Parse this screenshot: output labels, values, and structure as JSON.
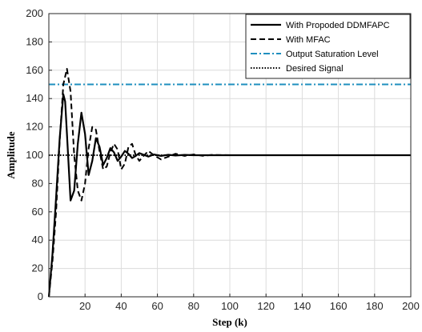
{
  "chart_data": {
    "type": "line",
    "title": "",
    "xlabel": "Step (k)",
    "ylabel": "Amplitude",
    "xlim": [
      0,
      200
    ],
    "ylim": [
      0,
      200
    ],
    "xticks": [
      20,
      40,
      60,
      80,
      100,
      120,
      140,
      160,
      180,
      200
    ],
    "yticks": [
      0,
      20,
      40,
      60,
      80,
      100,
      120,
      140,
      160,
      180,
      200
    ],
    "grid": true,
    "legend_position": "top-right",
    "series": [
      {
        "name": "With Propoded DDMFAPC",
        "color": "#000000",
        "style": "solid",
        "x": [
          0,
          2,
          4,
          6,
          8,
          9,
          10,
          12,
          14,
          16,
          18,
          20,
          22,
          24,
          26,
          28,
          30,
          32,
          34,
          36,
          38,
          40,
          42,
          44,
          46,
          48,
          50,
          52,
          55,
          58,
          62,
          66,
          70,
          75,
          80,
          90,
          100,
          120,
          150,
          200
        ],
        "y": [
          0,
          30,
          70,
          112,
          143,
          138,
          115,
          68,
          75,
          108,
          130,
          115,
          86,
          96,
          112,
          106,
          93,
          98,
          105,
          102,
          96,
          99,
          103,
          101,
          98,
          99.5,
          101.5,
          100.5,
          99,
          100.5,
          99.5,
          100.3,
          99.8,
          100.2,
          100,
          100,
          100,
          100,
          100,
          100
        ]
      },
      {
        "name": "With MFAC",
        "color": "#000000",
        "style": "dashed",
        "x": [
          0,
          2,
          4,
          6,
          8,
          10,
          12,
          14,
          16,
          18,
          20,
          22,
          24,
          26,
          28,
          30,
          32,
          34,
          36,
          38,
          40,
          42,
          44,
          46,
          48,
          50,
          52,
          55,
          58,
          62,
          66,
          70,
          75,
          80,
          85,
          90,
          100,
          120,
          150,
          200
        ],
        "y": [
          0,
          25,
          60,
          110,
          150,
          161,
          145,
          100,
          75,
          68,
          80,
          105,
          120,
          118,
          103,
          90,
          92,
          102,
          108,
          104,
          90,
          94,
          106,
          108,
          100,
          96,
          99,
          103,
          100,
          97,
          99,
          101,
          99.5,
          100.5,
          99.6,
          100.2,
          100,
          100,
          100,
          100
        ]
      },
      {
        "name": "Output Saturation Level",
        "color": "#1f8fbf",
        "style": "dashdot",
        "x": [
          0,
          200
        ],
        "y": [
          150,
          150
        ]
      },
      {
        "name": "Desired Signal",
        "color": "#000000",
        "style": "dotted",
        "x": [
          0,
          200
        ],
        "y": [
          100,
          100
        ]
      }
    ]
  }
}
